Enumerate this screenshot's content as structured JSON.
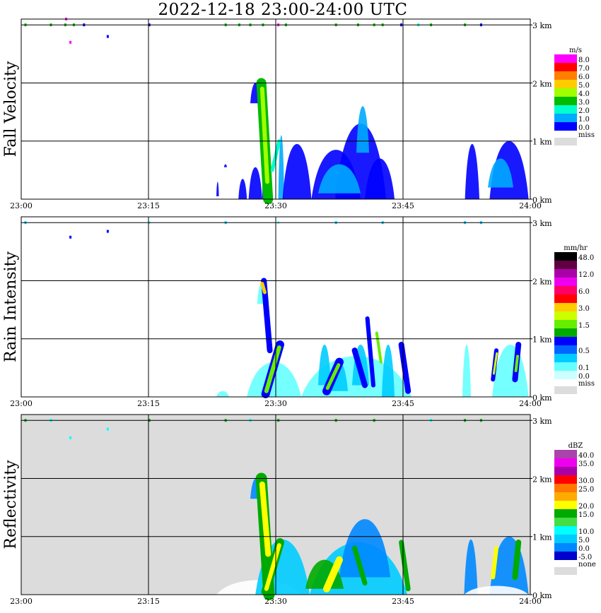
{
  "title": "2022-12-18   23:00-24:00 UTC",
  "chart_data": [
    {
      "type": "heatmap",
      "panel": "fall-velocity",
      "ylabel": "Fall Velocity",
      "x_ticks": [
        "23:00",
        "23:15",
        "23:30",
        "23:45",
        "24:00"
      ],
      "y_ticks": [
        "0 km",
        "1 km",
        "2 km",
        "3 km"
      ],
      "ylim_km": [
        0,
        3.1
      ],
      "grid": true,
      "background": "#ffffff",
      "legend_unit": "m/s",
      "legend": [
        {
          "label": "8.0",
          "color": "#ff00ff"
        },
        {
          "label": "7.0",
          "color": "#ff0000"
        },
        {
          "label": "6.0",
          "color": "#ff7f00"
        },
        {
          "label": "5.0",
          "color": "#ffcc00"
        },
        {
          "label": "4.0",
          "color": "#a0ff00"
        },
        {
          "label": "3.0",
          "color": "#00bb00"
        },
        {
          "label": "2.0",
          "color": "#00ffcc"
        },
        {
          "label": "1.0",
          "color": "#00aaff"
        },
        {
          "label": "0.0",
          "color": "#0000ff"
        }
      ],
      "missing_label": "miss",
      "missing_color": "#dcdcdc",
      "blobs": [
        {
          "t0": 23.0,
          "t1": 23.3,
          "h0": 0.05,
          "h1": 0.3,
          "color": "#0000ff"
        },
        {
          "t0": 23.9,
          "t1": 24.25,
          "h0": 0.55,
          "h1": 0.6,
          "color": "#0000ff"
        },
        {
          "t0": 25.6,
          "t1": 26.6,
          "h0": 0.0,
          "h1": 0.35,
          "color": "#0000ff"
        },
        {
          "t0": 27.0,
          "t1": 28.2,
          "h0": 1.65,
          "h1": 2.0,
          "color": "#0000ff"
        },
        {
          "t0": 26.8,
          "t1": 28.4,
          "h0": 0.0,
          "h1": 0.55,
          "color": "#0000ff"
        },
        {
          "t0": 28.4,
          "t1": 29.4,
          "h0": 0.0,
          "h1": 1.1,
          "color": "#0000ff"
        },
        {
          "t0": 30.3,
          "t1": 31.0,
          "h0": 0.0,
          "h1": 1.1,
          "color": "#00aaff"
        },
        {
          "t0": 30.8,
          "t1": 34.2,
          "h0": 0.0,
          "h1": 0.95,
          "color": "#0000ff"
        },
        {
          "t0": 34.2,
          "t1": 40.0,
          "h0": 0.0,
          "h1": 0.85,
          "color": "#0000ff"
        },
        {
          "t0": 37.0,
          "t1": 43.0,
          "h0": 0.0,
          "h1": 1.3,
          "color": "#0000ff"
        },
        {
          "t0": 40.5,
          "t1": 44.0,
          "h0": 0.0,
          "h1": 0.7,
          "color": "#0000ff"
        },
        {
          "t0": 35.0,
          "t1": 40.0,
          "h0": 0.1,
          "h1": 0.6,
          "color": "#00aaff"
        },
        {
          "t0": 39.5,
          "t1": 41.0,
          "h0": 0.8,
          "h1": 1.6,
          "color": "#00aaff"
        },
        {
          "t0": 52.3,
          "t1": 54.0,
          "h0": 0.0,
          "h1": 0.95,
          "color": "#0000ff"
        },
        {
          "t0": 55.2,
          "t1": 59.8,
          "h0": 0.0,
          "h1": 1.0,
          "color": "#0000ff"
        },
        {
          "t0": 55.0,
          "t1": 58.0,
          "h0": 0.2,
          "h1": 0.7,
          "color": "#00aaff"
        }
      ],
      "streaks": [
        {
          "t0": 28.3,
          "t1": 29.1,
          "h0": 2.0,
          "h1": 0.0,
          "width": 14,
          "color": "#00bb00"
        },
        {
          "t0": 28.4,
          "t1": 29.0,
          "h0": 1.9,
          "h1": 0.3,
          "width": 6,
          "color": "#a0ff00"
        },
        {
          "t0": 29.6,
          "t1": 30.4,
          "h0": 0.5,
          "h1": 1.0,
          "width": 5,
          "color": "#00ffcc"
        }
      ],
      "dots": [
        {
          "t": 0.5,
          "h": 3.0,
          "color": "#00bb00"
        },
        {
          "t": 3.5,
          "h": 3.0,
          "color": "#00bb00"
        },
        {
          "t": 5.2,
          "h": 3.0,
          "color": "#00bb00"
        },
        {
          "t": 6.2,
          "h": 3.0,
          "color": "#00bb00"
        },
        {
          "t": 7.4,
          "h": 3.0,
          "color": "#0000ff"
        },
        {
          "t": 15.1,
          "h": 3.0,
          "color": "#0000ff"
        },
        {
          "t": 24.1,
          "h": 3.0,
          "color": "#00bb00"
        },
        {
          "t": 25.7,
          "h": 3.0,
          "color": "#00bb00"
        },
        {
          "t": 27.0,
          "h": 3.0,
          "color": "#00bb00"
        },
        {
          "t": 28.5,
          "h": 3.0,
          "color": "#00bb00"
        },
        {
          "t": 30.3,
          "h": 3.0,
          "color": "#ff00ff"
        },
        {
          "t": 31.2,
          "h": 3.0,
          "color": "#00bb00"
        },
        {
          "t": 37.1,
          "h": 3.0,
          "color": "#00bb00"
        },
        {
          "t": 39.7,
          "h": 3.0,
          "color": "#00bb00"
        },
        {
          "t": 41.6,
          "h": 3.0,
          "color": "#00bb00"
        },
        {
          "t": 42.6,
          "h": 3.0,
          "color": "#00bb00"
        },
        {
          "t": 44.8,
          "h": 3.0,
          "color": "#0000ff"
        },
        {
          "t": 46.8,
          "h": 3.0,
          "color": "#00ffcc"
        },
        {
          "t": 48.3,
          "h": 3.0,
          "color": "#00bb00"
        },
        {
          "t": 52.3,
          "h": 3.0,
          "color": "#00bb00"
        },
        {
          "t": 54.2,
          "h": 3.0,
          "color": "#0000ff"
        },
        {
          "t": 5.3,
          "h": 3.1,
          "color": "#ff00ff"
        },
        {
          "t": 5.8,
          "h": 2.7,
          "color": "#ff00ff"
        },
        {
          "t": 10.2,
          "h": 2.8,
          "color": "#0000ff"
        }
      ]
    },
    {
      "type": "heatmap",
      "panel": "rain-intensity",
      "ylabel": "Rain Intensity",
      "x_ticks": [
        "23:00",
        "23:15",
        "23:30",
        "23:45",
        "24:00"
      ],
      "y_ticks": [
        "0 km",
        "1 km",
        "2 km",
        "3 km"
      ],
      "ylim_km": [
        0,
        3.1
      ],
      "grid": true,
      "background": "#ffffff",
      "legend_unit": "mm/hr",
      "legend": [
        {
          "label": "48.0",
          "color": "#000000"
        },
        {
          "label": "",
          "color": "#600040"
        },
        {
          "label": "12.0",
          "color": "#aa00aa"
        },
        {
          "label": "",
          "color": "#ee00ee"
        },
        {
          "label": "6.0",
          "color": "#ff0066"
        },
        {
          "label": "",
          "color": "#ff0000"
        },
        {
          "label": "3.0",
          "color": "#ffcc00"
        },
        {
          "label": "",
          "color": "#ccff00"
        },
        {
          "label": "1.5",
          "color": "#66ee00"
        },
        {
          "label": "",
          "color": "#00aa00"
        },
        {
          "label": "",
          "color": "#0000ff"
        },
        {
          "label": "0.5",
          "color": "#0066ff"
        },
        {
          "label": "",
          "color": "#00ccff"
        },
        {
          "label": "0.1",
          "color": "#66ffff"
        },
        {
          "label": "0.0",
          "color": "#ccffff"
        }
      ],
      "missing_label": "miss",
      "missing_color": "#dcdcdc",
      "blobs": [
        {
          "t0": 23.0,
          "t1": 24.5,
          "h0": 0.0,
          "h1": 0.1,
          "color": "#66ffff"
        },
        {
          "t0": 26.6,
          "t1": 33.0,
          "h0": 0.0,
          "h1": 0.6,
          "color": "#66ffff"
        },
        {
          "t0": 33.0,
          "t1": 46.0,
          "h0": 0.0,
          "h1": 0.7,
          "color": "#66ffff"
        },
        {
          "t0": 27.8,
          "t1": 29.2,
          "h0": 1.6,
          "h1": 2.0,
          "color": "#66ffff"
        },
        {
          "t0": 35.0,
          "t1": 36.5,
          "h0": 0.2,
          "h1": 0.9,
          "color": "#00ccff"
        },
        {
          "t0": 36.5,
          "t1": 38.5,
          "h0": 0.1,
          "h1": 0.6,
          "color": "#00ccff"
        },
        {
          "t0": 39.0,
          "t1": 41.0,
          "h0": 0.2,
          "h1": 0.9,
          "color": "#00ccff"
        },
        {
          "t0": 42.5,
          "t1": 44.0,
          "h0": 0.0,
          "h1": 0.9,
          "color": "#00ccff"
        },
        {
          "t0": 52.0,
          "t1": 53.0,
          "h0": 0.0,
          "h1": 0.9,
          "color": "#66ffff"
        },
        {
          "t0": 55.5,
          "t1": 59.8,
          "h0": 0.0,
          "h1": 0.9,
          "color": "#66ffff"
        }
      ],
      "streaks": [
        {
          "t0": 28.6,
          "t1": 29.3,
          "h0": 2.0,
          "h1": 0.8,
          "width": 8,
          "color": "#0000ff"
        },
        {
          "t0": 28.4,
          "t1": 28.7,
          "h0": 1.95,
          "h1": 1.8,
          "width": 5,
          "color": "#ffcc00"
        },
        {
          "t0": 30.5,
          "t1": 28.8,
          "h0": 0.9,
          "h1": 0.05,
          "width": 12,
          "color": "#0000ff"
        },
        {
          "t0": 30.4,
          "t1": 28.9,
          "h0": 0.85,
          "h1": 0.1,
          "width": 6,
          "color": "#66ee00"
        },
        {
          "t0": 37.5,
          "t1": 36.0,
          "h0": 0.6,
          "h1": 0.1,
          "width": 12,
          "color": "#0000ff"
        },
        {
          "t0": 37.4,
          "t1": 36.1,
          "h0": 0.55,
          "h1": 0.15,
          "width": 5,
          "color": "#66ee00"
        },
        {
          "t0": 39.3,
          "t1": 40.5,
          "h0": 0.8,
          "h1": 0.2,
          "width": 8,
          "color": "#0000ff"
        },
        {
          "t0": 44.8,
          "t1": 45.6,
          "h0": 0.9,
          "h1": 0.1,
          "width": 8,
          "color": "#0000ff"
        },
        {
          "t0": 40.8,
          "t1": 41.5,
          "h0": 1.35,
          "h1": 0.2,
          "width": 6,
          "color": "#0000ff"
        },
        {
          "t0": 41.9,
          "t1": 42.4,
          "h0": 1.1,
          "h1": 0.6,
          "width": 4,
          "color": "#66ee00"
        },
        {
          "t0": 56.0,
          "t1": 55.6,
          "h0": 0.8,
          "h1": 0.3,
          "width": 6,
          "color": "#0000ff"
        },
        {
          "t0": 56.05,
          "t1": 55.7,
          "h0": 0.75,
          "h1": 0.4,
          "width": 3,
          "color": "#ccff00"
        },
        {
          "t0": 58.6,
          "t1": 58.2,
          "h0": 0.9,
          "h1": 0.3,
          "width": 8,
          "color": "#0000ff"
        },
        {
          "t0": 58.5,
          "t1": 58.3,
          "h0": 0.7,
          "h1": 0.45,
          "width": 4,
          "color": "#66ee00"
        }
      ],
      "dots": [
        {
          "t": 0.5,
          "h": 3.0,
          "color": "#00ccff"
        },
        {
          "t": 15.1,
          "h": 3.0,
          "color": "#66ffff"
        },
        {
          "t": 24.1,
          "h": 3.0,
          "color": "#00ccff"
        },
        {
          "t": 30.3,
          "h": 3.0,
          "color": "#66ffff"
        },
        {
          "t": 37.1,
          "h": 3.0,
          "color": "#00ccff"
        },
        {
          "t": 42.6,
          "h": 3.0,
          "color": "#00ccff"
        },
        {
          "t": 52.3,
          "h": 3.0,
          "color": "#00ccff"
        },
        {
          "t": 54.2,
          "h": 3.0,
          "color": "#00ccff"
        },
        {
          "t": 5.8,
          "h": 2.75,
          "color": "#0000ff"
        },
        {
          "t": 10.2,
          "h": 2.85,
          "color": "#0000ff"
        }
      ]
    },
    {
      "type": "heatmap",
      "panel": "reflectivity",
      "ylabel": "Reflectivity",
      "x_ticks": [
        "23:00",
        "23:15",
        "23:30",
        "23:45",
        "24:00"
      ],
      "y_ticks": [
        "0 km",
        "1 km",
        "2 km",
        "3 km"
      ],
      "ylim_km": [
        0,
        3.1
      ],
      "grid": true,
      "background": "#dcdcdc",
      "legend_unit": "dBZ",
      "legend": [
        {
          "label": "40.0",
          "color": "#aa44aa"
        },
        {
          "label": "35.0",
          "color": "#ee00ee"
        },
        {
          "label": "",
          "color": "#aa00aa"
        },
        {
          "label": "30.0",
          "color": "#ff0000"
        },
        {
          "label": "25.0",
          "color": "#ff7700"
        },
        {
          "label": "",
          "color": "#ffaa00"
        },
        {
          "label": "20.0",
          "color": "#ffff00"
        },
        {
          "label": "15.0",
          "color": "#00aa00"
        },
        {
          "label": "",
          "color": "#44dd44"
        },
        {
          "label": "10.0",
          "color": "#00ffff"
        },
        {
          "label": "5.0",
          "color": "#00ccff"
        },
        {
          "label": "0.0",
          "color": "#0088ff"
        },
        {
          "label": "-5.0",
          "color": "#0000cc"
        }
      ],
      "missing_label": "none",
      "missing_color": "#dcdcdc",
      "blobs": [
        {
          "t0": 23.0,
          "t1": 33.0,
          "h0": 0.0,
          "h1": 0.25,
          "color": "#ffffff"
        },
        {
          "t0": 27.0,
          "t1": 28.3,
          "h0": 1.65,
          "h1": 2.0,
          "color": "#0088ff"
        },
        {
          "t0": 27.6,
          "t1": 34.0,
          "h0": 0.0,
          "h1": 0.95,
          "color": "#00ccff"
        },
        {
          "t0": 34.0,
          "t1": 45.5,
          "h0": 0.0,
          "h1": 0.9,
          "color": "#00ccff"
        },
        {
          "t0": 37.5,
          "t1": 43.5,
          "h0": 0.3,
          "h1": 1.3,
          "color": "#0088ff"
        },
        {
          "t0": 33.5,
          "t1": 38.0,
          "h0": 0.1,
          "h1": 0.6,
          "color": "#00aa00"
        },
        {
          "t0": 52.2,
          "t1": 53.8,
          "h0": 0.0,
          "h1": 0.95,
          "color": "#0088ff"
        },
        {
          "t0": 55.2,
          "t1": 59.8,
          "h0": 0.0,
          "h1": 1.0,
          "color": "#0088ff"
        },
        {
          "t0": 52.2,
          "t1": 59.8,
          "h0": 0.0,
          "h1": 0.15,
          "color": "#ffffff"
        }
      ],
      "streaks": [
        {
          "t0": 28.3,
          "t1": 29.2,
          "h0": 2.0,
          "h1": 0.0,
          "width": 16,
          "color": "#00aa00"
        },
        {
          "t0": 28.4,
          "t1": 29.1,
          "h0": 1.9,
          "h1": 0.7,
          "width": 8,
          "color": "#ffff00"
        },
        {
          "t0": 30.5,
          "t1": 28.8,
          "h0": 0.9,
          "h1": 0.05,
          "width": 12,
          "color": "#00aa00"
        },
        {
          "t0": 30.4,
          "t1": 28.9,
          "h0": 0.85,
          "h1": 0.1,
          "width": 6,
          "color": "#ffff00"
        },
        {
          "t0": 37.5,
          "t1": 36.0,
          "h0": 0.6,
          "h1": 0.1,
          "width": 10,
          "color": "#ffff00"
        },
        {
          "t0": 39.3,
          "t1": 40.5,
          "h0": 0.8,
          "h1": 0.2,
          "width": 7,
          "color": "#00aa00"
        },
        {
          "t0": 44.8,
          "t1": 45.6,
          "h0": 0.9,
          "h1": 0.1,
          "width": 7,
          "color": "#00aa00"
        },
        {
          "t0": 56.0,
          "t1": 55.6,
          "h0": 0.8,
          "h1": 0.3,
          "width": 6,
          "color": "#ffff00"
        },
        {
          "t0": 58.6,
          "t1": 58.2,
          "h0": 0.9,
          "h1": 0.3,
          "width": 8,
          "color": "#00aa00"
        }
      ],
      "dots": [
        {
          "t": 0.5,
          "h": 3.0,
          "color": "#00aa00"
        },
        {
          "t": 3.5,
          "h": 3.0,
          "color": "#00ffff"
        },
        {
          "t": 15.1,
          "h": 3.0,
          "color": "#00aa00"
        },
        {
          "t": 24.1,
          "h": 3.0,
          "color": "#00aa00"
        },
        {
          "t": 27.0,
          "h": 3.0,
          "color": "#00ffff"
        },
        {
          "t": 30.3,
          "h": 3.0,
          "color": "#00aa00"
        },
        {
          "t": 37.1,
          "h": 3.0,
          "color": "#00aa00"
        },
        {
          "t": 41.6,
          "h": 3.0,
          "color": "#00aa00"
        },
        {
          "t": 48.3,
          "h": 3.0,
          "color": "#00ffff"
        },
        {
          "t": 52.3,
          "h": 3.0,
          "color": "#00aa00"
        },
        {
          "t": 54.2,
          "h": 3.0,
          "color": "#00aa00"
        },
        {
          "t": 5.8,
          "h": 2.7,
          "color": "#00ffff"
        },
        {
          "t": 10.2,
          "h": 2.85,
          "color": "#00ffff"
        }
      ]
    }
  ]
}
